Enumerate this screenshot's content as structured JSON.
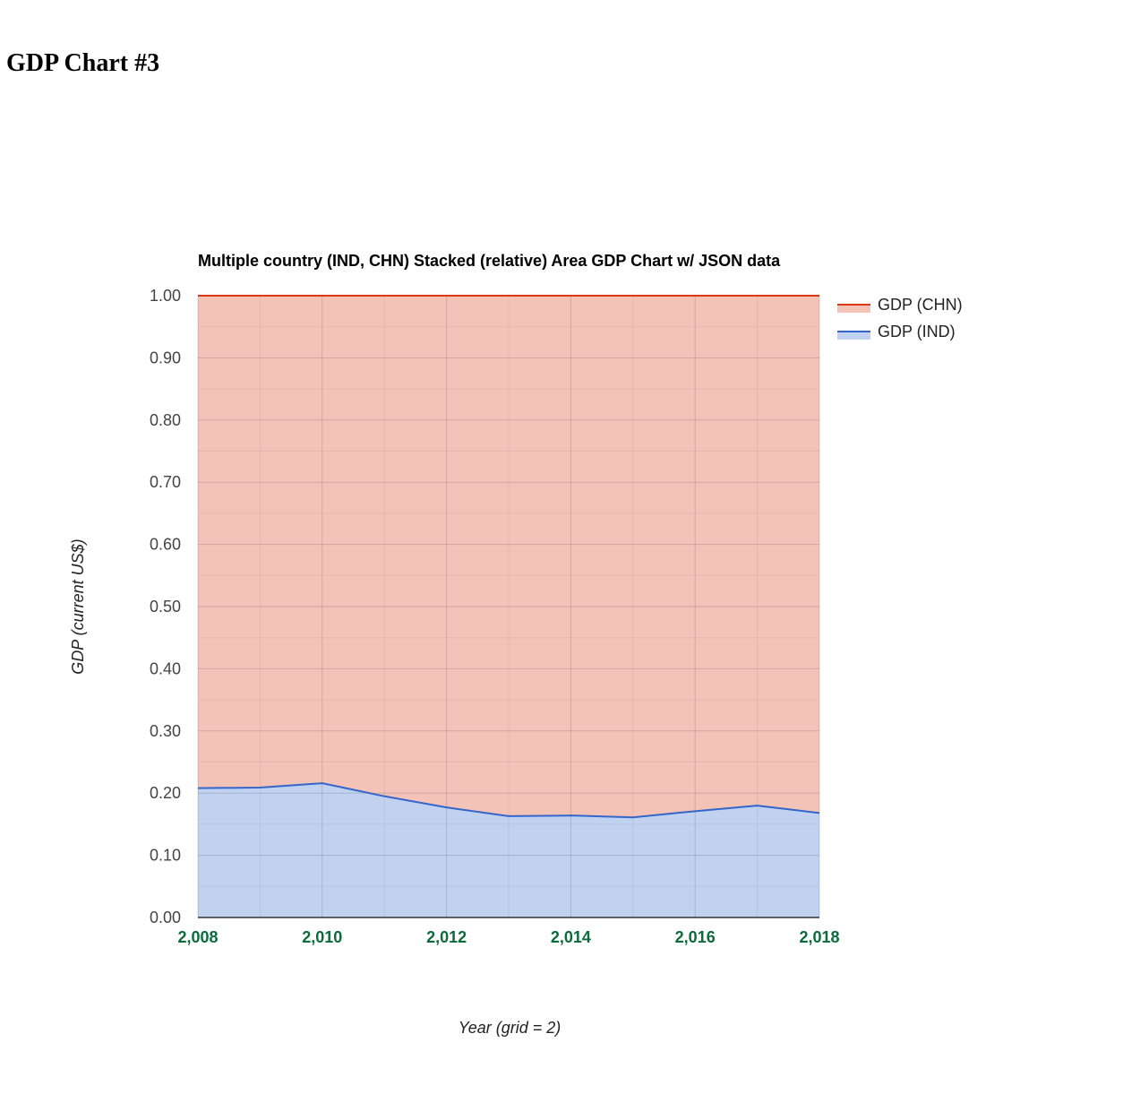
{
  "page": {
    "heading": "GDP Chart #3"
  },
  "chart_data": {
    "type": "area",
    "stacked": "relative",
    "title": "Multiple country (IND, CHN) Stacked (relative) Area GDP Chart w/ JSON data",
    "xlabel": "Year (grid = 2)",
    "ylabel": "GDP (current US$)",
    "x": [
      2008,
      2009,
      2010,
      2011,
      2012,
      2013,
      2014,
      2015,
      2016,
      2017,
      2018
    ],
    "x_ticks": [
      2008,
      2010,
      2012,
      2014,
      2016,
      2018
    ],
    "x_tick_labels": [
      "2,008",
      "2,010",
      "2,012",
      "2,014",
      "2,016",
      "2,018"
    ],
    "y_ticks": [
      0,
      0.1,
      0.2,
      0.3,
      0.4,
      0.5,
      0.6,
      0.7,
      0.8,
      0.9,
      1.0
    ],
    "y_tick_labels": [
      "0.00",
      "0.10",
      "0.20",
      "0.30",
      "0.40",
      "0.50",
      "0.60",
      "0.70",
      "0.80",
      "0.90",
      "1.00"
    ],
    "xlim": [
      2008,
      2018
    ],
    "ylim": [
      0,
      1
    ],
    "grid": true,
    "legend_position": "right",
    "series": [
      {
        "name": "GDP (IND)",
        "color": "#3366cc",
        "values": [
          0.208,
          0.209,
          0.216,
          0.195,
          0.177,
          0.163,
          0.164,
          0.161,
          0.171,
          0.18,
          0.168
        ]
      },
      {
        "name": "GDP (CHN)",
        "color": "#dc3912",
        "values": [
          0.792,
          0.791,
          0.784,
          0.805,
          0.823,
          0.837,
          0.836,
          0.839,
          0.829,
          0.82,
          0.832
        ]
      }
    ],
    "legend_order": [
      1,
      0
    ]
  }
}
